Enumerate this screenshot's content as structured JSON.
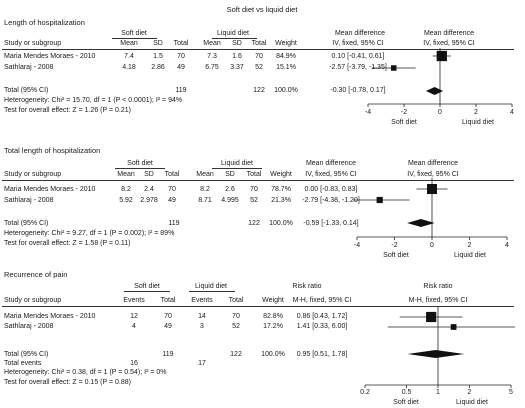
{
  "main_title": "Soft diet vs liquid diet",
  "header_labels": {
    "soft_diet": "Soft diet",
    "liquid_diet": "Liquid diet",
    "mean_difference": "Mean difference",
    "risk_ratio": "Risk ratio",
    "study": "Study or subgroup",
    "mean": "Mean",
    "sd": "SD",
    "total": "Total",
    "events": "Events",
    "weight": "Weight",
    "iv_ci": "IV, fixed, 95% CI",
    "mh_ci": "M-H, fixed, 95% CI",
    "total_95ci": "Total (95% CI)",
    "total_events": "Total events",
    "favours_soft": "Soft diet",
    "favours_liquid": "Liquid diet"
  },
  "panels": [
    {
      "title": "Length of hospitalization",
      "rows": [
        {
          "study": "Maria Mendes Moraes - 2010",
          "mean1": "7.4",
          "sd1": "1.5",
          "n1": "70",
          "mean2": "7.3",
          "sd2": "1.6",
          "n2": "70",
          "weight": "84.9%",
          "effect": "0.10 [-0.41, 0.61]"
        },
        {
          "study": "Sathlaraj - 2008",
          "mean1": "4.18",
          "sd1": "2.86",
          "n1": "49",
          "mean2": "6.75",
          "sd2": "3.37",
          "n2": "52",
          "weight": "15.1%",
          "effect": "-2.57 [-3.79, -1.35]"
        }
      ],
      "total": {
        "n1": "119",
        "n2": "122",
        "weight": "100.0%",
        "effect": "-0.30 [-0.78, 0.17]"
      },
      "heterogeneity": "Heterogeneity: Chi² = 15.70, df = 1 (P < 0.0001); I² = 94%",
      "overall": "Test for overall effect: Z = 1.26 (P = 0.21)",
      "axis_ticks": [
        "-4",
        "-2",
        "0",
        "2",
        "4"
      ]
    },
    {
      "title": "Total length of hospitalization",
      "rows": [
        {
          "study": "Maria Mendes Moraes - 2010",
          "mean1": "8.2",
          "sd1": "2.4",
          "n1": "70",
          "mean2": "8.2",
          "sd2": "2.6",
          "n2": "70",
          "weight": "78.7%",
          "effect": "0.00 [-0.83, 0.83]"
        },
        {
          "study": "Sathlaraj - 2008",
          "mean1": "5.92",
          "sd1": "2.978",
          "n1": "49",
          "mean2": "8.71",
          "sd2": "4.995",
          "n2": "52",
          "weight": "21.3%",
          "effect": "-2.79 [-4.38, -1.20]"
        }
      ],
      "total": {
        "n1": "119",
        "n2": "122",
        "weight": "100.0%",
        "effect": "-0.59 [-1.33, 0.14]"
      },
      "heterogeneity": "Heterogeneity: Chi² = 9.27, df = 1 (P = 0.002); I² = 89%",
      "overall": "Test for overall effect: Z = 1.58 (P = 0.11)",
      "axis_ticks": [
        "-4",
        "-2",
        "0",
        "2",
        "4"
      ]
    },
    {
      "title": "Recurrence of pain",
      "rows": [
        {
          "study": "Maria Mendes Moraes - 2010",
          "events1": "12",
          "n1": "70",
          "events2": "14",
          "n2": "70",
          "weight": "82.8%",
          "effect": "0.86 [0.43, 1.72]"
        },
        {
          "study": "Sathlaraj - 2008",
          "events1": "4",
          "n1": "49",
          "events2": "3",
          "n2": "52",
          "weight": "17.2%",
          "effect": "1.41 [0.33, 6.00]"
        }
      ],
      "total": {
        "n1": "119",
        "n2": "122",
        "weight": "100.0%",
        "effect": "0.95 [0.51, 1.78]",
        "events1": "16",
        "events2": "17"
      },
      "heterogeneity": "Heterogeneity: Chi² = 0.38, df = 1 (P = 0.54); I² = 0%",
      "overall": "Test for overall effect: Z = 0.15 (P = 0.88)",
      "axis_ticks": [
        "0.2",
        "0.5",
        "1",
        "2",
        "5"
      ]
    }
  ],
  "chart_data": [
    {
      "type": "forest",
      "title": "Length of hospitalization",
      "scale": "linear",
      "xlim": [
        -4,
        4
      ],
      "ticks": [
        -4,
        -2,
        0,
        2,
        4
      ],
      "studies": [
        {
          "name": "Maria Mendes Moraes - 2010",
          "estimate": 0.1,
          "lo": -0.41,
          "hi": 0.61,
          "weight": 84.9
        },
        {
          "name": "Sathlaraj - 2008",
          "estimate": -2.57,
          "lo": -3.79,
          "hi": -1.35,
          "weight": 15.1
        }
      ],
      "pooled": {
        "estimate": -0.3,
        "lo": -0.78,
        "hi": 0.17
      }
    },
    {
      "type": "forest",
      "title": "Total length of hospitalization",
      "scale": "linear",
      "xlim": [
        -4,
        4
      ],
      "ticks": [
        -4,
        -2,
        0,
        2,
        4
      ],
      "studies": [
        {
          "name": "Maria Mendes Moraes - 2010",
          "estimate": 0.0,
          "lo": -0.83,
          "hi": 0.83,
          "weight": 78.7
        },
        {
          "name": "Sathlaraj - 2008",
          "estimate": -2.79,
          "lo": -4.38,
          "hi": -1.2,
          "weight": 21.3
        }
      ],
      "pooled": {
        "estimate": -0.59,
        "lo": -1.33,
        "hi": 0.14
      }
    },
    {
      "type": "forest",
      "title": "Recurrence of pain",
      "scale": "log",
      "xlim": [
        0.2,
        5
      ],
      "ticks": [
        0.2,
        0.5,
        1,
        2,
        5
      ],
      "studies": [
        {
          "name": "Maria Mendes Moraes - 2010",
          "estimate": 0.86,
          "lo": 0.43,
          "hi": 1.72,
          "weight": 82.8
        },
        {
          "name": "Sathlaraj - 2008",
          "estimate": 1.41,
          "lo": 0.33,
          "hi": 6.0,
          "weight": 17.2
        }
      ],
      "pooled": {
        "estimate": 0.95,
        "lo": 0.51,
        "hi": 1.78
      }
    }
  ]
}
